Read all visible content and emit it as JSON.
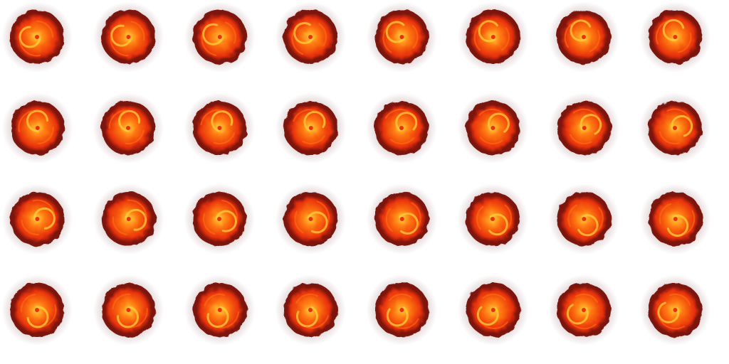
{
  "sprite_sheet": {
    "columns": 8,
    "rows": 4,
    "frame_count": 32,
    "description_free": true,
    "colors": {
      "background": "#ffffff",
      "core": "#ffd23a",
      "mid": "#ff7a12",
      "outer": "#e8320c",
      "rim": "#7a1208",
      "haze": "#5a0a10"
    },
    "frame_icon": "fireball-frame-icon"
  }
}
